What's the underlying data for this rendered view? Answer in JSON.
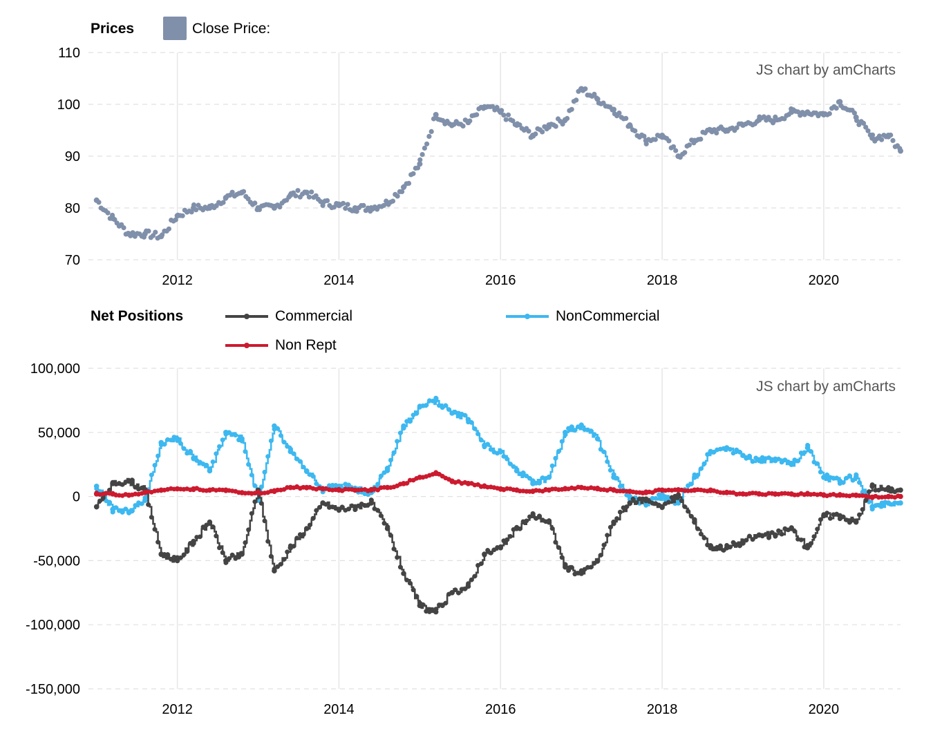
{
  "prices_panel": {
    "title": "Prices",
    "legend_label": "Close Price:",
    "credit": "JS chart by amCharts"
  },
  "positions_panel": {
    "title": "Net Positions",
    "legend": [
      {
        "label": "Commercial",
        "color": "#444444"
      },
      {
        "label": "NonCommercial",
        "color": "#3db8f0"
      },
      {
        "label": "Non Rept",
        "color": "#cc1a2e"
      }
    ],
    "credit": "JS chart by amCharts"
  },
  "colors": {
    "price": "#8090aa",
    "price_down": "#cc1a2e",
    "commercial": "#444444",
    "noncommercial": "#3db8f0",
    "nonrept": "#cc1a2e",
    "grid": "#e6e6e6"
  },
  "chart_data": [
    {
      "type": "scatter",
      "title": "Prices",
      "series": [
        {
          "name": "Close Price:",
          "x": [
            2011.0,
            2011.2,
            2011.4,
            2011.6,
            2011.8,
            2012.0,
            2012.2,
            2012.4,
            2012.6,
            2012.8,
            2013.0,
            2013.2,
            2013.4,
            2013.6,
            2013.8,
            2014.0,
            2014.2,
            2014.4,
            2014.6,
            2014.8,
            2015.0,
            2015.2,
            2015.4,
            2015.6,
            2015.8,
            2016.0,
            2016.2,
            2016.4,
            2016.6,
            2016.8,
            2017.0,
            2017.2,
            2017.4,
            2017.6,
            2017.8,
            2018.0,
            2018.2,
            2018.4,
            2018.6,
            2018.8,
            2019.0,
            2019.2,
            2019.4,
            2019.6,
            2019.8,
            2020.0,
            2020.2,
            2020.4,
            2020.6,
            2020.8,
            2020.95
          ],
          "y": [
            81.5,
            78,
            75,
            75,
            74.5,
            78.5,
            80,
            80,
            82,
            83,
            80,
            80,
            82.5,
            83,
            81,
            80.5,
            80,
            80,
            81,
            84,
            88.5,
            98,
            96,
            96.5,
            99.5,
            98.5,
            96,
            94,
            96,
            97,
            103,
            101,
            99,
            96,
            93,
            94,
            90,
            93,
            95,
            95,
            96,
            97,
            97,
            98.5,
            98.5,
            98,
            100.5,
            97.5,
            93.5,
            94,
            91
          ]
        }
      ],
      "ylim": [
        70,
        110
      ],
      "yticks": [
        "110",
        "100",
        "90",
        "80",
        "70"
      ],
      "xticks": [
        "2012",
        "2014",
        "2016",
        "2018",
        "2020"
      ],
      "grid": true,
      "legend_position": "top-left"
    },
    {
      "type": "line",
      "title": "Net Positions",
      "x": [
        2011.0,
        2011.2,
        2011.4,
        2011.6,
        2011.8,
        2012.0,
        2012.2,
        2012.4,
        2012.6,
        2012.8,
        2013.0,
        2013.2,
        2013.4,
        2013.6,
        2013.8,
        2014.0,
        2014.2,
        2014.4,
        2014.6,
        2014.8,
        2015.0,
        2015.2,
        2015.4,
        2015.6,
        2015.8,
        2016.0,
        2016.2,
        2016.4,
        2016.6,
        2016.8,
        2017.0,
        2017.2,
        2017.4,
        2017.6,
        2017.8,
        2018.0,
        2018.2,
        2018.4,
        2018.6,
        2018.8,
        2019.0,
        2019.2,
        2019.4,
        2019.6,
        2019.8,
        2020.0,
        2020.2,
        2020.4,
        2020.6,
        2020.8,
        2020.95
      ],
      "series": [
        {
          "name": "Commercial",
          "values": [
            -8000,
            10000,
            12000,
            5000,
            -45000,
            -50000,
            -35000,
            -20000,
            -50000,
            -45000,
            5000,
            -58000,
            -40000,
            -25000,
            -5000,
            -10000,
            -8000,
            -5000,
            -25000,
            -60000,
            -85000,
            -90000,
            -75000,
            -70000,
            -45000,
            -40000,
            -25000,
            -15000,
            -20000,
            -55000,
            -60000,
            -50000,
            -20000,
            -5000,
            -2000,
            -8000,
            0,
            -20000,
            -40000,
            -40000,
            -35000,
            -30000,
            -30000,
            -25000,
            -40000,
            -15000,
            -15000,
            -20000,
            8000,
            5000,
            5000
          ]
        },
        {
          "name": "NonCommercial",
          "values": [
            8000,
            -10000,
            -12000,
            -3000,
            42000,
            45000,
            30000,
            20000,
            50000,
            45000,
            -3000,
            55000,
            35000,
            20000,
            5000,
            8000,
            6000,
            3000,
            22000,
            55000,
            70000,
            75000,
            65000,
            60000,
            40000,
            35000,
            20000,
            10000,
            15000,
            50000,
            55000,
            45000,
            15000,
            0,
            -5000,
            0,
            -5000,
            15000,
            35000,
            38000,
            32000,
            28000,
            28000,
            25000,
            38000,
            15000,
            12000,
            15000,
            -8000,
            -5000,
            -5000
          ]
        },
        {
          "name": "Non Rept",
          "values": [
            2000,
            2000,
            1000,
            3000,
            5000,
            6000,
            6000,
            5000,
            5000,
            3000,
            3000,
            4000,
            7000,
            7000,
            6000,
            5000,
            5000,
            5000,
            7000,
            10000,
            15000,
            18000,
            12000,
            10000,
            8000,
            6000,
            5000,
            4000,
            5000,
            6000,
            7000,
            6000,
            5000,
            4000,
            3000,
            5000,
            5000,
            5000,
            5000,
            3000,
            2000,
            2000,
            2000,
            2000,
            2000,
            1000,
            1000,
            1000,
            -500,
            0,
            0
          ]
        }
      ],
      "ylim": [
        -150000,
        100000
      ],
      "yticks": [
        "100,000",
        "50,000",
        "0",
        "-50,000",
        "-100,000",
        "-150,000"
      ],
      "xticks": [
        "2012",
        "2014",
        "2016",
        "2018",
        "2020"
      ],
      "grid": true,
      "legend_position": "top"
    }
  ]
}
